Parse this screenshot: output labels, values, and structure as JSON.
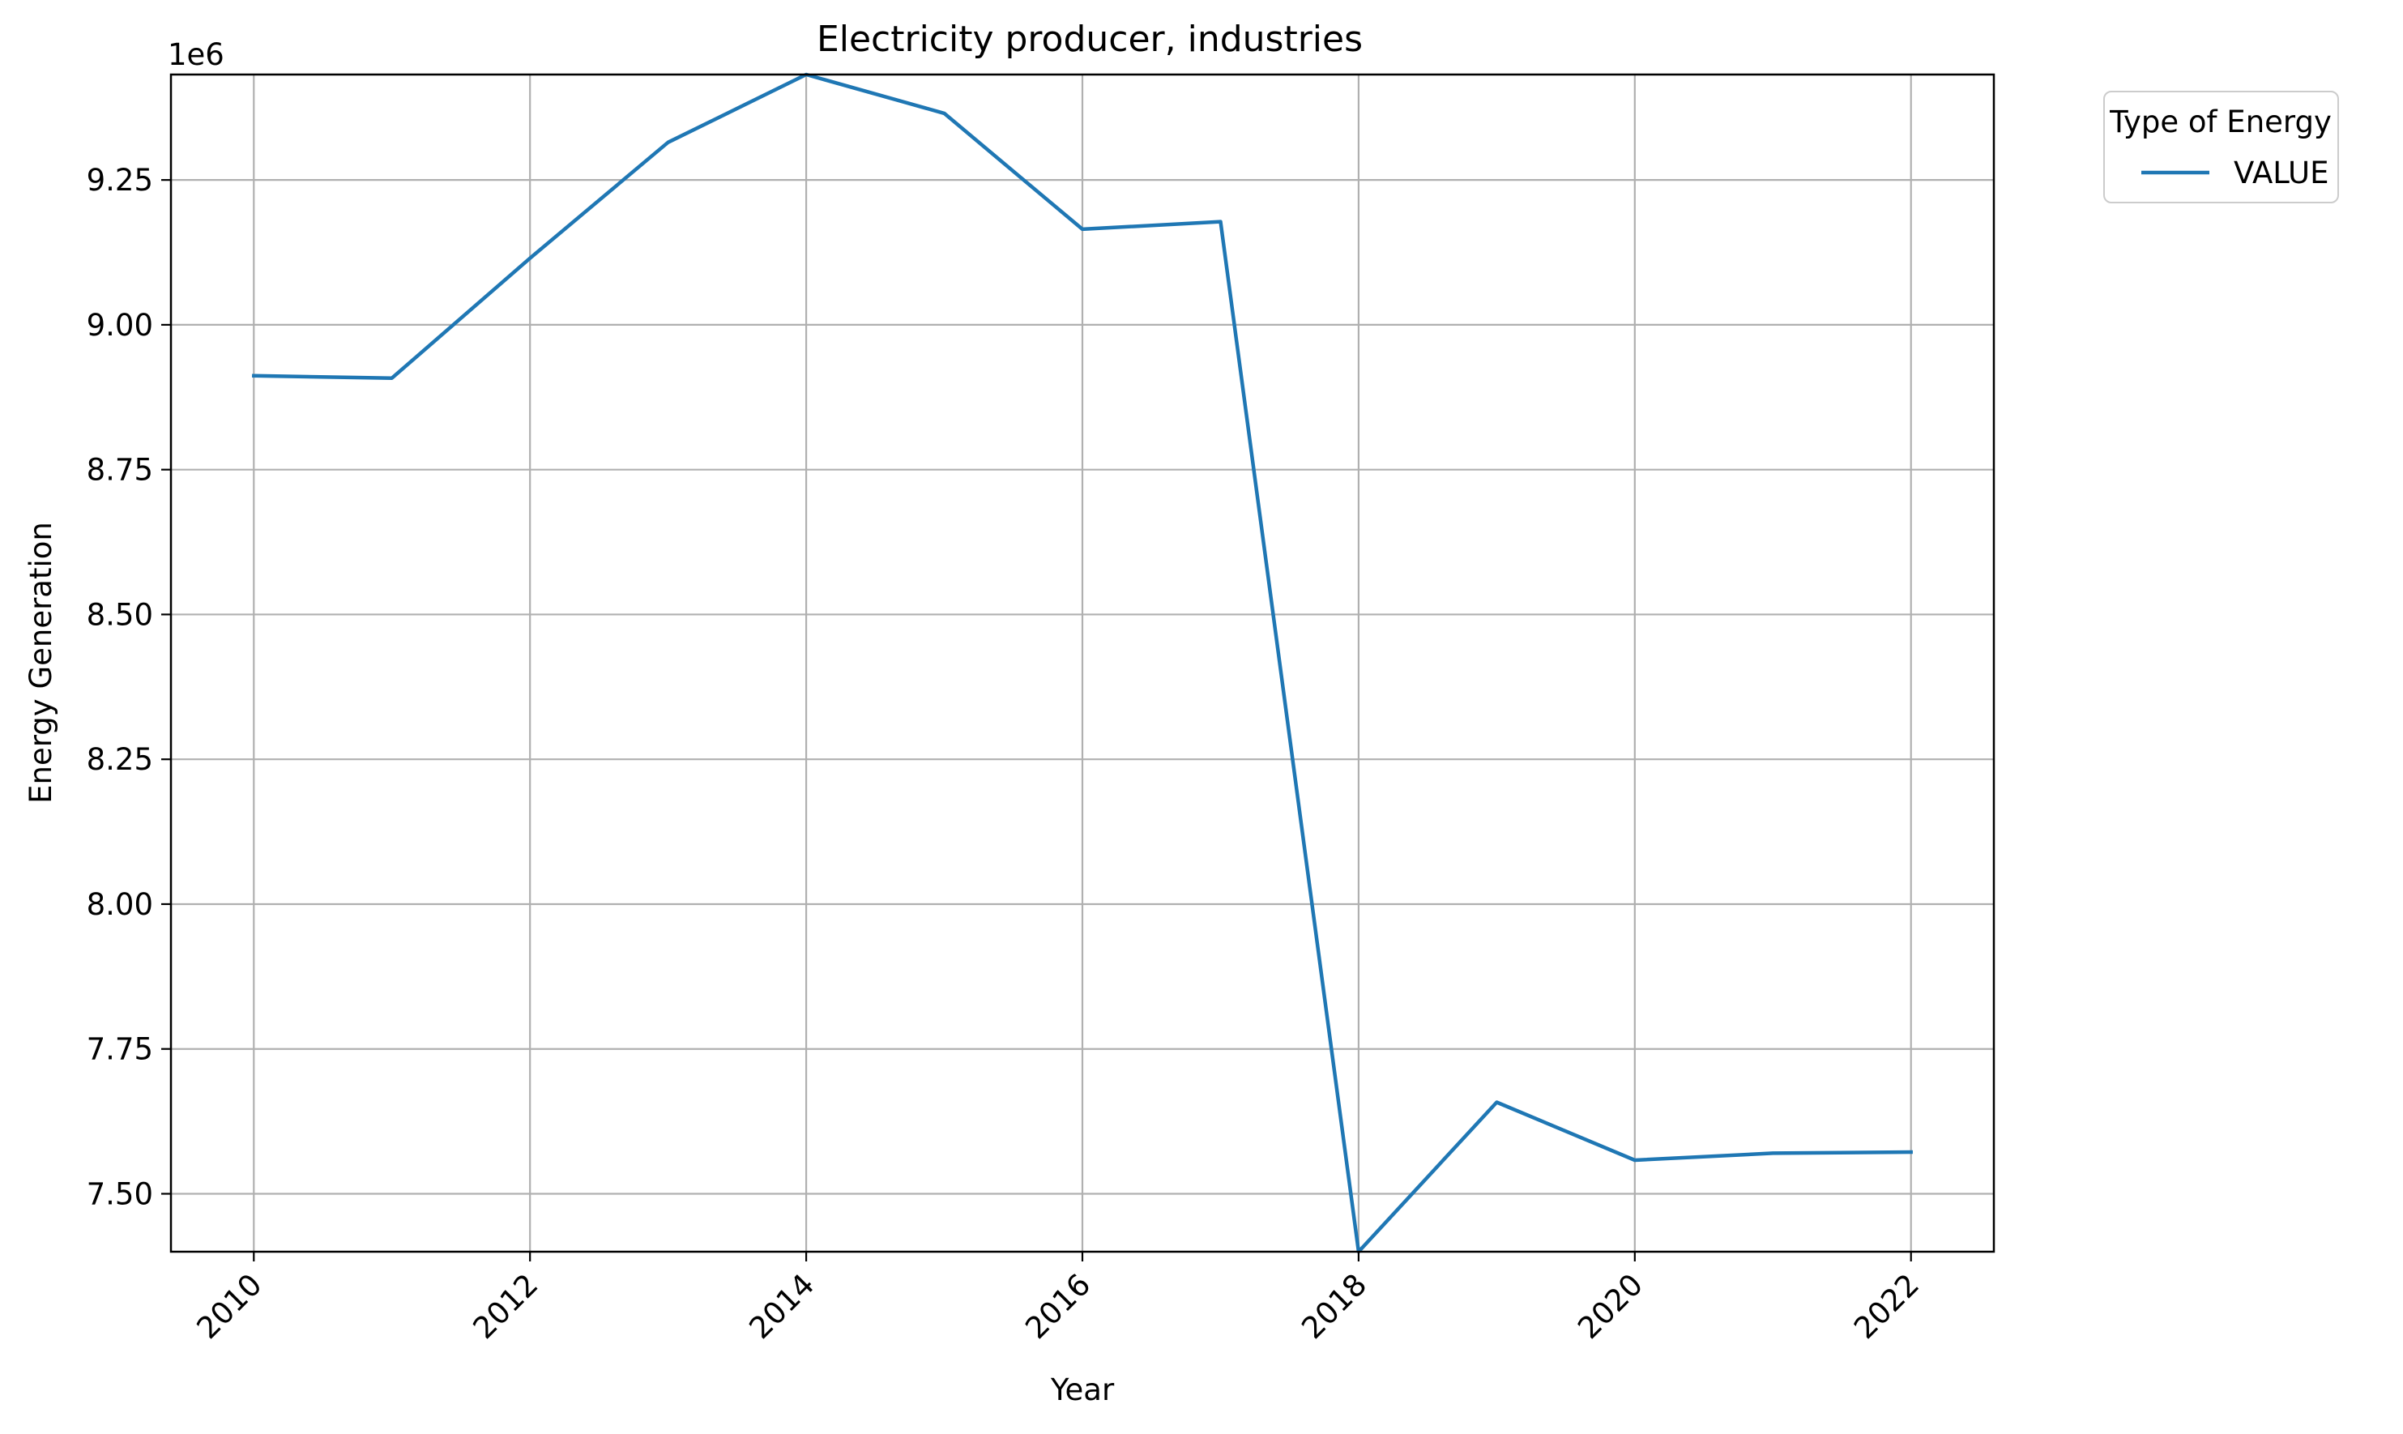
{
  "chart_data": {
    "type": "line",
    "title": "Electricity producer, industries",
    "xlabel": "Year",
    "ylabel": "Energy Generation",
    "y_offset_label": "1e6",
    "x": [
      2010,
      2011,
      2012,
      2013,
      2014,
      2015,
      2016,
      2017,
      2018,
      2019,
      2020,
      2021,
      2022
    ],
    "series": [
      {
        "name": "VALUE",
        "color": "#1f77b4",
        "values": [
          8912000,
          8908000,
          9115000,
          9315000,
          9432000,
          9365000,
          9165000,
          9178000,
          7400000,
          7658000,
          7558000,
          7570000,
          7572000
        ]
      }
    ],
    "xlim": [
      2009.4,
      2022.6
    ],
    "ylim": [
      7400000,
      9432000
    ],
    "x_ticks": [
      2010,
      2012,
      2014,
      2016,
      2018,
      2020,
      2022
    ],
    "x_tick_labels": [
      "2010",
      "2012",
      "2014",
      "2016",
      "2018",
      "2020",
      "2022"
    ],
    "y_ticks": [
      7500000,
      7750000,
      8000000,
      8250000,
      8500000,
      8750000,
      9000000,
      9250000
    ],
    "y_tick_labels": [
      "7.50",
      "7.75",
      "8.00",
      "8.25",
      "8.50",
      "8.75",
      "9.00",
      "9.25"
    ],
    "x_tick_rotation": -45,
    "grid": true,
    "legend": {
      "title": "Type of Energy",
      "placement": "outside-top-right",
      "entries": [
        "VALUE"
      ]
    }
  }
}
